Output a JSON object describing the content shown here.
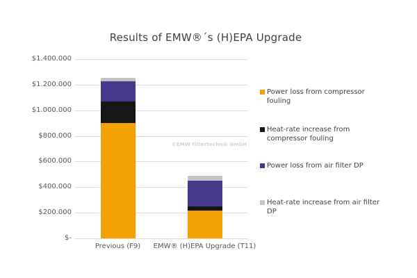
{
  "chart_data": {
    "type": "bar",
    "stacked": true,
    "title": "Results of EMW®´s (H)EPA Upgrade",
    "watermark": "©EMW filtertechnik GmbH",
    "categories": [
      "Previous (F9)",
      "EMW® (H)EPA Upgrade (T11)"
    ],
    "series": [
      {
        "name": "Power loss from compressor fouling",
        "color": "#F2A202",
        "values": [
          900000,
          215000
        ]
      },
      {
        "name": "Heat-rate increase from compressor fouling",
        "color": "#161616",
        "values": [
          170000,
          35000
        ]
      },
      {
        "name": "Power loss from air filter DP",
        "color": "#453A8C",
        "values": [
          155000,
          200000
        ]
      },
      {
        "name": "Heat-rate increase from air filter DP",
        "color": "#C4C4C4",
        "values": [
          30000,
          40000
        ]
      }
    ],
    "ylim": [
      0,
      1400000
    ],
    "ytick_step": 200000,
    "ytick_labels": [
      "$-",
      "$200.000",
      "$400.000",
      "$600.000",
      "$800.000",
      "$1.000.000",
      "$1.200.000",
      "$1.400.000"
    ],
    "grid": true,
    "legend_position": "right",
    "currency_symbol": "$"
  }
}
